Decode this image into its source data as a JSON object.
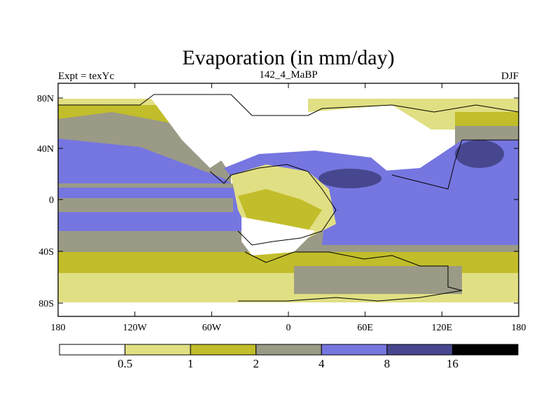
{
  "title": "Evaporation (in mm/day)",
  "left_label": "Expt = texYc",
  "center_label": "142_4_MaBP",
  "right_label": "DJF",
  "lat_ticks": [
    "80N",
    "40N",
    "0",
    "40S",
    "80S"
  ],
  "lon_ticks": [
    "180",
    "120W",
    "60W",
    "0",
    "60E",
    "120E",
    "180"
  ],
  "colorbar": {
    "colors": [
      "#ffffff",
      "#e1df83",
      "#c2bd2a",
      "#9b9a86",
      "#7676e1",
      "#47478f",
      "#000000"
    ],
    "labels": [
      "0.5",
      "1",
      "2",
      "4",
      "8",
      "16"
    ]
  }
}
